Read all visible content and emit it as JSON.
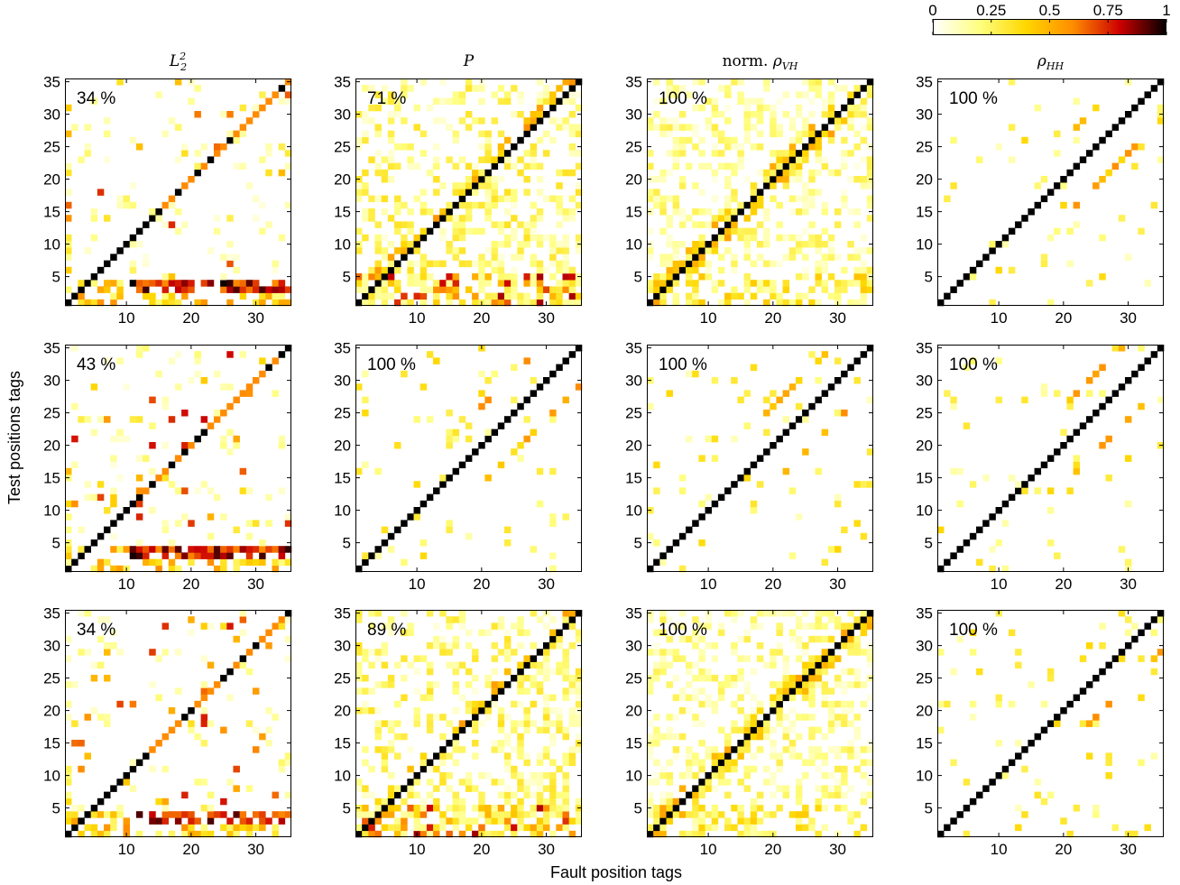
{
  "chart_data": {
    "type": "heatmap",
    "layout": "3x4 grid",
    "shared_xlabel": "Fault position tags",
    "shared_ylabel": "Test positions tags",
    "column_titles": [
      {
        "main": "L",
        "sup": "2",
        "sub": "2"
      },
      {
        "main": "P"
      },
      {
        "prefix": "norm. ",
        "main": "ρ",
        "sub": "VH"
      },
      {
        "main": "ρ",
        "sub": "HH"
      }
    ],
    "colorbar": {
      "ticks": [
        "0",
        "0.25",
        "0.5",
        "0.75",
        "1"
      ],
      "range": [
        0,
        1
      ],
      "colors": [
        "#ffffff",
        "#ffff80",
        "#ffd700",
        "#ff8c00",
        "#cc0000",
        "#000000"
      ]
    },
    "x_ticks": [
      "10",
      "20",
      "30"
    ],
    "y_ticks": [
      "5",
      "10",
      "15",
      "20",
      "25",
      "30",
      "35"
    ],
    "range": [
      1,
      35
    ],
    "panels": [
      {
        "row": 1,
        "col": 1,
        "accuracy": "34 %"
      },
      {
        "row": 1,
        "col": 2,
        "accuracy": "71 %"
      },
      {
        "row": 1,
        "col": 3,
        "accuracy": "100 %"
      },
      {
        "row": 1,
        "col": 4,
        "accuracy": "100 %"
      },
      {
        "row": 2,
        "col": 1,
        "accuracy": "43 %"
      },
      {
        "row": 2,
        "col": 2,
        "accuracy": "100 %"
      },
      {
        "row": 2,
        "col": 3,
        "accuracy": "100 %"
      },
      {
        "row": 2,
        "col": 4,
        "accuracy": "100 %"
      },
      {
        "row": 3,
        "col": 1,
        "accuracy": "34 %"
      },
      {
        "row": 3,
        "col": 2,
        "accuracy": "89 %"
      },
      {
        "row": 3,
        "col": 3,
        "accuracy": "100 %"
      },
      {
        "row": 3,
        "col": 4,
        "accuracy": "100 %"
      }
    ]
  }
}
